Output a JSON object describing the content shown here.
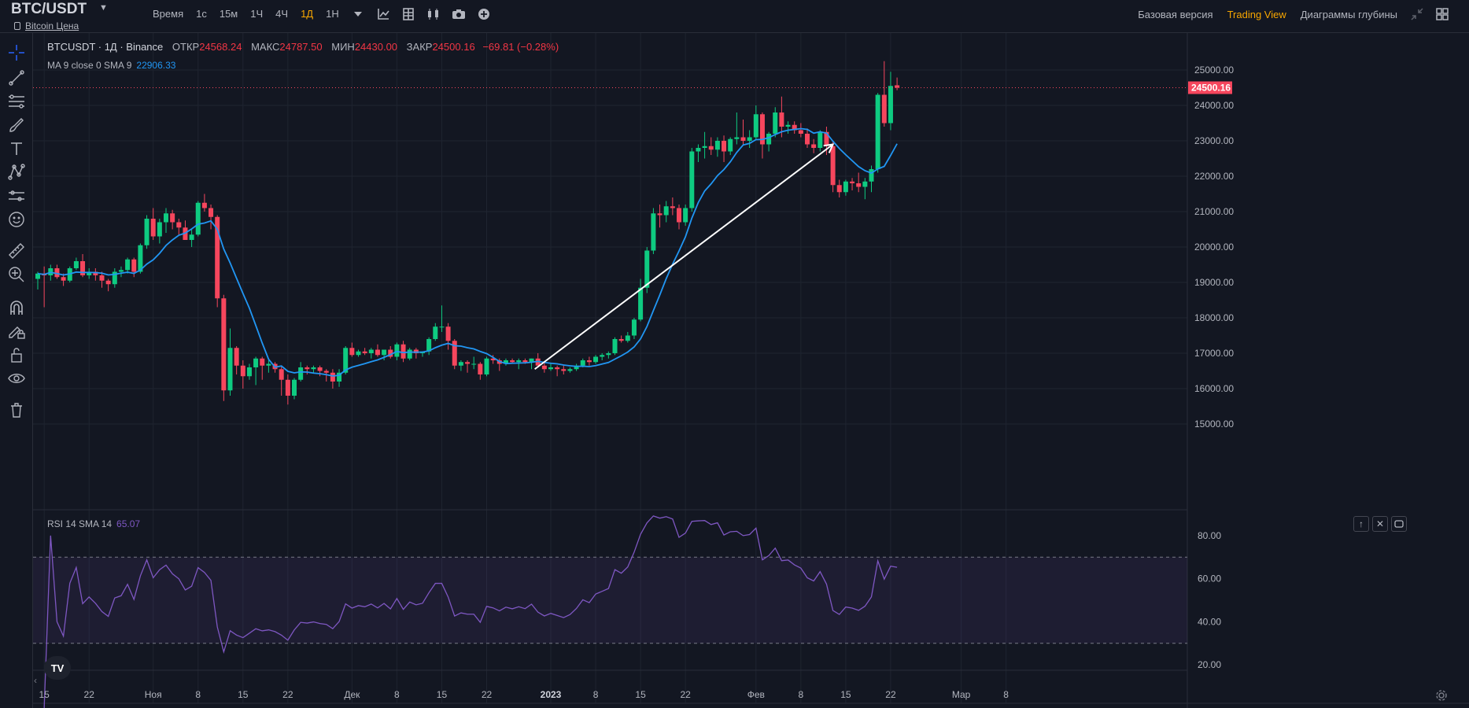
{
  "header": {
    "symbol": "BTC/USDT",
    "subtitle": "Bitcoin Цена",
    "intervals": [
      "Время",
      "1с",
      "15м",
      "1Ч",
      "4Ч",
      "1Д",
      "1Н"
    ],
    "active_interval": "1Д",
    "views": [
      "Базовая версия",
      "Trading View",
      "Диаграммы глубины"
    ],
    "active_view": "Trading View",
    "toolbar_icons": [
      "chevron-down-icon",
      "indicators-icon",
      "templates-icon",
      "chart-type-icon",
      "camera-icon",
      "add-icon"
    ]
  },
  "legend": {
    "name": "BTCUSDT · 1Д · Binance",
    "open_label": "ОТКР",
    "open": "24568.24",
    "high_label": "МАКС",
    "high": "24787.50",
    "low_label": "МИН",
    "low": "24430.00",
    "close_label": "ЗАКР",
    "close": "24500.16",
    "change": "−69.81 (−0.28%)"
  },
  "ma_legend": {
    "label": "MA 9 close 0 SMA 9",
    "value": "22906.33"
  },
  "rsi_legend": {
    "label": "RSI 14 SMA 14",
    "value": "65.07"
  },
  "left_toolbar": [
    "crosshair-icon",
    "trend-line-icon",
    "fib-icon",
    "brush-icon",
    "text-icon",
    "pattern-icon",
    "forecast-icon",
    "emoji-icon",
    "ruler-icon",
    "zoom-in-icon",
    "magnet-icon",
    "lock-drawings-icon",
    "lock-icon",
    "eye-icon",
    "trash-icon"
  ],
  "colors": {
    "up": "#26a69a",
    "up_bright": "#0ecb81",
    "down": "#f6465d",
    "ma": "#2196f3",
    "rsi": "#7e57c2",
    "accent": "#f7a600"
  },
  "chart_data": [
    {
      "type": "candlestick",
      "title": "BTCUSDT · 1Д · Binance",
      "x_labels": [
        "15",
        "22",
        "Ноя",
        "8",
        "15",
        "22",
        "Дек",
        "8",
        "15",
        "22",
        "2023",
        "8",
        "15",
        "22",
        "Фев",
        "8",
        "15",
        "22",
        "Мар",
        "8"
      ],
      "y_ticks": [
        15000,
        16000,
        17000,
        18000,
        19000,
        20000,
        21000,
        22000,
        23000,
        24000,
        25000
      ],
      "ylim": [
        15000,
        25600
      ],
      "last_price": "24500.16",
      "ohlc": [
        [
          19100,
          19300,
          18800,
          19250
        ],
        [
          19250,
          19450,
          18300,
          19200
        ],
        [
          19200,
          19500,
          19050,
          19400
        ],
        [
          19400,
          19500,
          19100,
          19150
        ],
        [
          19150,
          19250,
          18900,
          19050
        ],
        [
          19050,
          19450,
          19000,
          19400
        ],
        [
          19400,
          19700,
          19350,
          19600
        ],
        [
          19600,
          19800,
          19150,
          19200
        ],
        [
          19200,
          19400,
          19100,
          19300
        ],
        [
          19300,
          19400,
          19050,
          19200
        ],
        [
          19200,
          19300,
          18850,
          19050
        ],
        [
          19050,
          19100,
          18750,
          18950
        ],
        [
          18950,
          19400,
          18850,
          19300
        ],
        [
          19300,
          19450,
          19150,
          19350
        ],
        [
          19350,
          19700,
          19250,
          19650
        ],
        [
          19650,
          19700,
          19150,
          19300
        ],
        [
          19300,
          20100,
          19250,
          20050
        ],
        [
          20050,
          20900,
          19950,
          20800
        ],
        [
          20800,
          21100,
          20200,
          20300
        ],
        [
          20300,
          20800,
          20100,
          20700
        ],
        [
          20700,
          21100,
          20400,
          20950
        ],
        [
          20950,
          21050,
          20500,
          20700
        ],
        [
          20700,
          20800,
          20350,
          20550
        ],
        [
          20550,
          20750,
          20200,
          20200
        ],
        [
          20200,
          20500,
          20000,
          20350
        ],
        [
          20350,
          21300,
          20300,
          21250
        ],
        [
          21250,
          21500,
          21000,
          21100
        ],
        [
          21100,
          21200,
          20500,
          20850
        ],
        [
          20850,
          20900,
          18300,
          18550
        ],
        [
          18550,
          18650,
          15650,
          15950
        ],
        [
          15950,
          17700,
          15800,
          17150
        ],
        [
          17150,
          17200,
          16400,
          16650
        ],
        [
          16650,
          16800,
          16000,
          16350
        ],
        [
          16350,
          16700,
          16250,
          16600
        ],
        [
          16600,
          16900,
          16100,
          16850
        ],
        [
          16850,
          16900,
          16250,
          16650
        ],
        [
          16650,
          16800,
          16450,
          16700
        ],
        [
          16700,
          16750,
          16450,
          16550
        ],
        [
          16550,
          16650,
          15800,
          16250
        ],
        [
          16250,
          16400,
          15550,
          15800
        ],
        [
          15800,
          16300,
          15700,
          16250
        ],
        [
          16250,
          16750,
          16200,
          16600
        ],
        [
          16600,
          16650,
          16400,
          16550
        ],
        [
          16550,
          16650,
          16450,
          16600
        ],
        [
          16600,
          16650,
          16350,
          16500
        ],
        [
          16500,
          16550,
          16200,
          16450
        ],
        [
          16450,
          16550,
          16000,
          16200
        ],
        [
          16200,
          16550,
          16050,
          16450
        ],
        [
          16450,
          17200,
          16400,
          17150
        ],
        [
          17150,
          17300,
          16900,
          16950
        ],
        [
          16950,
          17100,
          16900,
          17050
        ],
        [
          17050,
          17150,
          16950,
          17000
        ],
        [
          17000,
          17150,
          16850,
          17100
        ],
        [
          17100,
          17250,
          16900,
          16950
        ],
        [
          16950,
          17050,
          16800,
          17100
        ],
        [
          17100,
          17200,
          16850,
          16900
        ],
        [
          16900,
          17300,
          16800,
          17250
        ],
        [
          17250,
          17350,
          16750,
          16850
        ],
        [
          16850,
          17150,
          16800,
          17100
        ],
        [
          17100,
          17150,
          16850,
          17000
        ],
        [
          17000,
          17050,
          16900,
          17050
        ],
        [
          17050,
          17450,
          16950,
          17400
        ],
        [
          17400,
          17850,
          17350,
          17750
        ],
        [
          17750,
          18350,
          17600,
          17750
        ],
        [
          17750,
          17850,
          17100,
          17350
        ],
        [
          17350,
          17400,
          16550,
          16650
        ],
        [
          16650,
          16800,
          16500,
          16750
        ],
        [
          16750,
          16800,
          16450,
          16700
        ],
        [
          16700,
          16900,
          16550,
          16700
        ],
        [
          16700,
          16750,
          16250,
          16400
        ],
        [
          16400,
          16900,
          16350,
          16850
        ],
        [
          16850,
          16950,
          16700,
          16800
        ],
        [
          16800,
          16850,
          16500,
          16700
        ],
        [
          16700,
          16850,
          16650,
          16800
        ],
        [
          16800,
          16850,
          16700,
          16750
        ],
        [
          16750,
          16850,
          16550,
          16800
        ],
        [
          16800,
          16850,
          16700,
          16750
        ],
        [
          16750,
          16850,
          16550,
          16850
        ],
        [
          16850,
          17000,
          16700,
          16650
        ],
        [
          16650,
          16750,
          16450,
          16550
        ],
        [
          16550,
          16700,
          16500,
          16600
        ],
        [
          16600,
          16650,
          16350,
          16550
        ],
        [
          16550,
          16650,
          16400,
          16500
        ],
        [
          16500,
          16600,
          16450,
          16550
        ],
        [
          16550,
          16700,
          16500,
          16650
        ],
        [
          16650,
          16850,
          16600,
          16800
        ],
        [
          16800,
          16900,
          16650,
          16750
        ],
        [
          16750,
          16950,
          16700,
          16900
        ],
        [
          16900,
          17000,
          16800,
          16950
        ],
        [
          16950,
          17050,
          16850,
          17000
        ],
        [
          17000,
          17450,
          16950,
          17400
        ],
        [
          17400,
          17500,
          17300,
          17350
        ],
        [
          17350,
          17600,
          17300,
          17500
        ],
        [
          17500,
          18000,
          17400,
          17950
        ],
        [
          17950,
          19100,
          17900,
          18850
        ],
        [
          18850,
          20000,
          18700,
          19900
        ],
        [
          19900,
          21100,
          19800,
          20950
        ],
        [
          20950,
          21200,
          20550,
          20900
        ],
        [
          20900,
          21300,
          20700,
          21150
        ],
        [
          21150,
          21400,
          20900,
          21100
        ],
        [
          21100,
          21200,
          20500,
          20700
        ],
        [
          20700,
          21200,
          20600,
          21100
        ],
        [
          21100,
          22800,
          21000,
          22700
        ],
        [
          22700,
          22900,
          22400,
          22800
        ],
        [
          22800,
          23250,
          22500,
          22850
        ],
        [
          22850,
          23100,
          22600,
          22750
        ],
        [
          22750,
          23100,
          22550,
          23000
        ],
        [
          23000,
          23150,
          22400,
          22700
        ],
        [
          22700,
          23100,
          22600,
          23050
        ],
        [
          23050,
          23800,
          22900,
          23100
        ],
        [
          23100,
          23600,
          22900,
          23000
        ],
        [
          23000,
          23300,
          22800,
          23100
        ],
        [
          23100,
          24000,
          23050,
          23750
        ],
        [
          23750,
          23800,
          22500,
          22900
        ],
        [
          22900,
          23250,
          22700,
          23200
        ],
        [
          23200,
          23950,
          23100,
          23800
        ],
        [
          23800,
          24250,
          23100,
          23400
        ],
        [
          23400,
          23550,
          23200,
          23450
        ],
        [
          23450,
          23550,
          23200,
          23300
        ],
        [
          23300,
          23500,
          23100,
          23200
        ],
        [
          23200,
          23350,
          22800,
          22900
        ],
        [
          22900,
          23050,
          22650,
          22800
        ],
        [
          22800,
          23300,
          22700,
          23250
        ],
        [
          23250,
          23400,
          22600,
          22850
        ],
        [
          22850,
          23000,
          21550,
          21750
        ],
        [
          21750,
          21900,
          21400,
          21550
        ],
        [
          21550,
          21900,
          21450,
          21850
        ],
        [
          21850,
          21950,
          21600,
          21800
        ],
        [
          21800,
          22100,
          21550,
          21700
        ],
        [
          21700,
          21950,
          21350,
          21850
        ],
        [
          21850,
          22300,
          21550,
          22200
        ],
        [
          22200,
          24350,
          22100,
          24300
        ],
        [
          24300,
          25250,
          23400,
          23500
        ],
        [
          23500,
          24950,
          23300,
          24550
        ],
        [
          24568.24,
          24787.5,
          24430,
          24500.16
        ]
      ],
      "ma": {
        "name": "MA 9 close 0 SMA 9",
        "last": 22906.33
      },
      "annotations": [
        {
          "type": "arrow",
          "from_date": "2023-01-01",
          "from_price": 16550,
          "to_date": "2023-02-17",
          "to_price": 22900
        }
      ]
    },
    {
      "type": "line",
      "title": "RSI 14 SMA 14",
      "ylim": [
        17.5,
        92
      ],
      "y_ticks": [
        20,
        40,
        60,
        80
      ],
      "bands": [
        30,
        70
      ],
      "last": 65.07
    }
  ]
}
